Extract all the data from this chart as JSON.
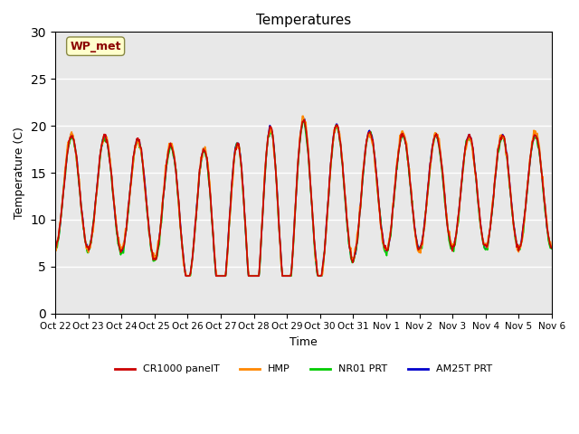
{
  "title": "Temperatures",
  "xlabel": "Time",
  "ylabel": "Temperature (C)",
  "annotation": "WP_met",
  "annotation_bg": "#FFFFCC",
  "annotation_border": "#888844",
  "annotation_text_color": "#8B0000",
  "ylim": [
    0,
    30
  ],
  "yticks": [
    0,
    5,
    10,
    15,
    20,
    25,
    30
  ],
  "x_labels": [
    "Oct 22",
    "Oct 23",
    "Oct 24",
    "Oct 25",
    "Oct 26",
    "Oct 27",
    "Oct 28",
    "Oct 29",
    "Oct 30",
    "Oct 31",
    "Nov 1",
    "Nov 2",
    "Nov 3",
    "Nov 4",
    "Nov 5",
    "Nov 6"
  ],
  "bg_color": "#E8E8E8",
  "fig_bg": "#FFFFFF",
  "series": [
    {
      "label": "CR1000 panelT",
      "color": "#CC0000"
    },
    {
      "label": "HMP",
      "color": "#FF8800"
    },
    {
      "label": "NR01 PRT",
      "color": "#00CC00"
    },
    {
      "label": "AM25T PRT",
      "color": "#0000CC"
    }
  ],
  "line_width": 1.2,
  "n_days": 15,
  "pts_per_day": 48
}
